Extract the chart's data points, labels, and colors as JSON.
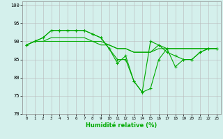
{
  "xlabel": "Humidité relative (%)",
  "background_color": "#d4f0ec",
  "grid_color": "#b8b8b8",
  "line_color": "#00aa00",
  "ylim": [
    70,
    101
  ],
  "xlim": [
    -0.5,
    23.5
  ],
  "yticks": [
    70,
    75,
    80,
    85,
    90,
    95,
    100
  ],
  "series_with_markers": [
    [
      89,
      90,
      91,
      93,
      93,
      93,
      93,
      93,
      92,
      91,
      88,
      84,
      86,
      79,
      76,
      90,
      89,
      87,
      86,
      85,
      85,
      87,
      88,
      88
    ],
    [
      89,
      90,
      91,
      93,
      93,
      93,
      93,
      93,
      92,
      91,
      88,
      85,
      85,
      79,
      76,
      77,
      85,
      88,
      83,
      85,
      85,
      87,
      88,
      88
    ]
  ],
  "series_plain": [
    [
      89,
      90,
      90,
      91,
      91,
      91,
      91,
      91,
      90,
      90,
      89,
      88,
      88,
      87,
      87,
      87,
      89,
      88,
      88,
      88,
      88,
      88,
      88,
      88
    ],
    [
      89,
      90,
      90,
      90,
      90,
      90,
      90,
      90,
      90,
      89,
      89,
      88,
      88,
      87,
      87,
      87,
      88,
      88,
      88,
      88,
      88,
      88,
      88,
      88
    ]
  ]
}
